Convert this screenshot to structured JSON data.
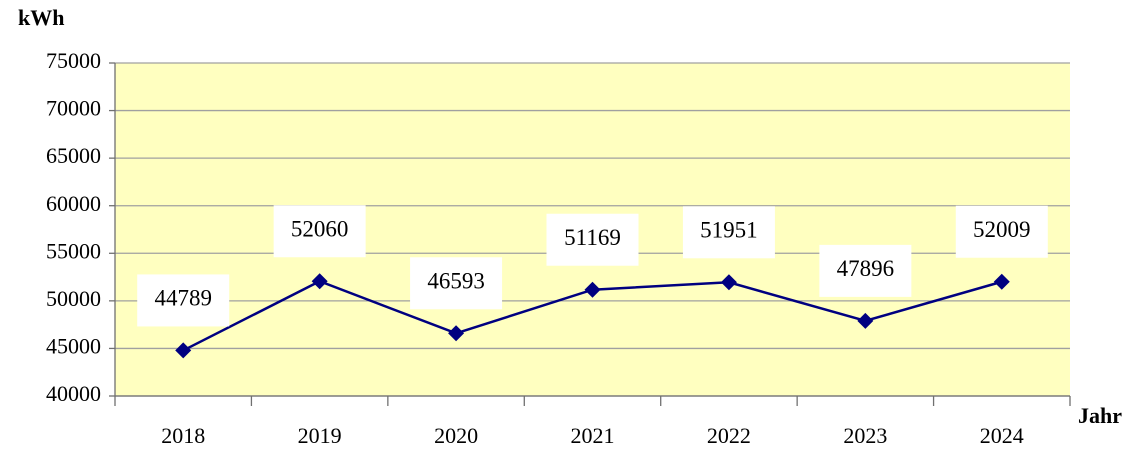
{
  "chart_data": {
    "type": "line",
    "y_label": "kWh",
    "x_label": "Jahr",
    "categories": [
      "2018",
      "2019",
      "2020",
      "2021",
      "2022",
      "2023",
      "2024"
    ],
    "series": [
      {
        "name": "kWh",
        "color": "#000080",
        "values": [
          44789,
          52060,
          46593,
          51169,
          51951,
          47896,
          52009
        ]
      }
    ],
    "ylim": [
      40000,
      75000
    ],
    "yticks": [
      40000,
      45000,
      50000,
      55000,
      60000,
      65000,
      70000,
      75000
    ],
    "grid": true,
    "plot_background": "#ffffc0",
    "data_labels": true
  }
}
